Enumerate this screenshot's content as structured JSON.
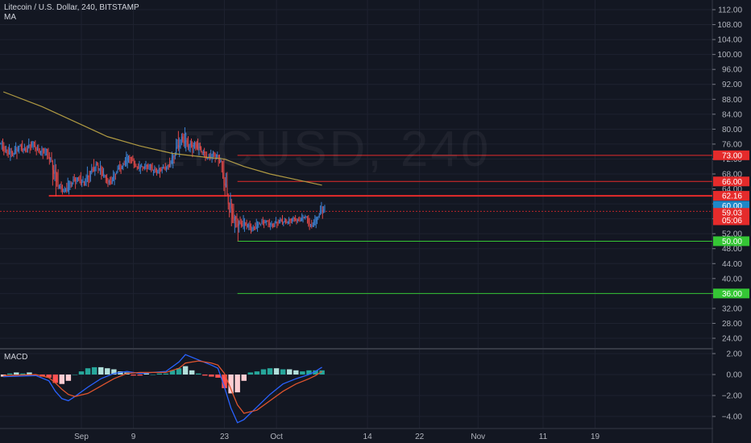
{
  "header": {
    "title": "Litecoin / U.S. Dollar, 240, BITSTAMP",
    "ma_label": "MA",
    "macd_label": "MACD",
    "watermark": "LTCUSD, 240"
  },
  "colors": {
    "background": "#131722",
    "grid": "#1e2230",
    "up_candle": "#3d83d4",
    "down_candle": "#e04848",
    "ma": "#b09a42",
    "macd_line": "#2962ff",
    "signal_line": "#e0542e",
    "hist_pos": "#26a69a",
    "hist_pos_light": "#b2dfdb",
    "hist_neg": "#ff5252",
    "hist_neg_light": "#ffcdd2",
    "level_red": "#e52b2b",
    "level_green": "#35c635",
    "price_tag": "#1e88c8"
  },
  "chart_data": [
    {
      "type": "candlestick",
      "title": "Litecoin / U.S. Dollar, 240, BITSTAMP",
      "overlay": "MA",
      "ylim": [
        20,
        114
      ],
      "y_ticks": [
        24,
        28,
        32,
        36,
        40,
        44,
        48,
        52,
        56,
        60,
        64,
        68,
        72,
        76,
        80,
        84,
        88,
        92,
        96,
        100,
        104,
        108,
        112
      ],
      "x_tick_labels": [
        "Sep",
        "9",
        "23",
        "Oct",
        "14",
        "22",
        "Nov",
        "11",
        "19"
      ],
      "x_tick_days": [
        1,
        9,
        23,
        31,
        45,
        53,
        62,
        72,
        80
      ],
      "x_axis_days_visible": [
        -11,
        91
      ],
      "ohlc_daily": [
        {
          "day": -11,
          "o": 76.0,
          "h": 77.5,
          "l": 73.0,
          "c": 74.5
        },
        {
          "day": -10,
          "o": 74.5,
          "h": 76.0,
          "l": 71.5,
          "c": 73.0
        },
        {
          "day": -9,
          "o": 73.0,
          "h": 76.5,
          "l": 72.0,
          "c": 75.5
        },
        {
          "day": -8,
          "o": 75.5,
          "h": 77.0,
          "l": 73.5,
          "c": 74.0
        },
        {
          "day": -7,
          "o": 74.0,
          "h": 77.5,
          "l": 73.5,
          "c": 76.5
        },
        {
          "day": -6,
          "o": 76.5,
          "h": 77.0,
          "l": 73.0,
          "c": 74.0
        },
        {
          "day": -5,
          "o": 74.0,
          "h": 75.5,
          "l": 72.0,
          "c": 74.5
        },
        {
          "day": -4,
          "o": 74.5,
          "h": 75.0,
          "l": 70.5,
          "c": 71.5
        },
        {
          "day": -3,
          "o": 71.5,
          "h": 72.0,
          "l": 62.0,
          "c": 64.5
        },
        {
          "day": -2,
          "o": 64.5,
          "h": 66.0,
          "l": 62.5,
          "c": 63.5
        },
        {
          "day": -1,
          "o": 63.5,
          "h": 67.0,
          "l": 62.5,
          "c": 65.5
        },
        {
          "day": 0,
          "o": 65.5,
          "h": 68.0,
          "l": 64.0,
          "c": 67.0
        },
        {
          "day": 1,
          "o": 67.0,
          "h": 68.5,
          "l": 64.5,
          "c": 65.0
        },
        {
          "day": 2,
          "o": 65.0,
          "h": 70.0,
          "l": 64.5,
          "c": 68.5
        },
        {
          "day": 3,
          "o": 68.5,
          "h": 72.0,
          "l": 67.5,
          "c": 70.5
        },
        {
          "day": 4,
          "o": 70.5,
          "h": 71.5,
          "l": 66.5,
          "c": 67.5
        },
        {
          "day": 5,
          "o": 67.5,
          "h": 68.0,
          "l": 64.5,
          "c": 65.5
        },
        {
          "day": 6,
          "o": 65.5,
          "h": 69.0,
          "l": 65.0,
          "c": 68.5
        },
        {
          "day": 7,
          "o": 68.5,
          "h": 71.5,
          "l": 68.0,
          "c": 70.5
        },
        {
          "day": 8,
          "o": 70.5,
          "h": 74.0,
          "l": 69.5,
          "c": 72.5
        },
        {
          "day": 9,
          "o": 72.5,
          "h": 73.0,
          "l": 69.5,
          "c": 70.0
        },
        {
          "day": 10,
          "o": 70.0,
          "h": 71.5,
          "l": 68.0,
          "c": 69.5
        },
        {
          "day": 11,
          "o": 69.5,
          "h": 71.5,
          "l": 68.5,
          "c": 70.5
        },
        {
          "day": 12,
          "o": 70.5,
          "h": 71.0,
          "l": 67.5,
          "c": 68.5
        },
        {
          "day": 13,
          "o": 68.5,
          "h": 70.5,
          "l": 67.0,
          "c": 69.5
        },
        {
          "day": 14,
          "o": 69.5,
          "h": 71.0,
          "l": 68.5,
          "c": 70.0
        },
        {
          "day": 15,
          "o": 70.0,
          "h": 74.0,
          "l": 69.5,
          "c": 73.5
        },
        {
          "day": 16,
          "o": 73.5,
          "h": 79.5,
          "l": 72.5,
          "c": 78.0
        },
        {
          "day": 17,
          "o": 78.0,
          "h": 80.5,
          "l": 74.0,
          "c": 75.0
        },
        {
          "day": 18,
          "o": 75.0,
          "h": 77.5,
          "l": 72.5,
          "c": 76.5
        },
        {
          "day": 19,
          "o": 76.5,
          "h": 77.5,
          "l": 73.0,
          "c": 74.0
        },
        {
          "day": 20,
          "o": 74.0,
          "h": 75.0,
          "l": 71.5,
          "c": 72.5
        },
        {
          "day": 21,
          "o": 72.5,
          "h": 74.5,
          "l": 71.0,
          "c": 73.5
        },
        {
          "day": 22,
          "o": 73.5,
          "h": 74.0,
          "l": 70.0,
          "c": 71.5
        },
        {
          "day": 23,
          "o": 71.5,
          "h": 72.0,
          "l": 62.0,
          "c": 62.5
        },
        {
          "day": 24,
          "o": 62.5,
          "h": 63.0,
          "l": 54.0,
          "c": 55.5
        },
        {
          "day": 25,
          "o": 55.5,
          "h": 57.5,
          "l": 50.0,
          "c": 55.0
        },
        {
          "day": 26,
          "o": 55.0,
          "h": 57.0,
          "l": 52.5,
          "c": 54.0
        },
        {
          "day": 27,
          "o": 54.0,
          "h": 55.5,
          "l": 52.0,
          "c": 53.5
        },
        {
          "day": 28,
          "o": 53.5,
          "h": 56.0,
          "l": 52.5,
          "c": 54.5
        },
        {
          "day": 29,
          "o": 54.5,
          "h": 56.5,
          "l": 53.5,
          "c": 55.5
        },
        {
          "day": 30,
          "o": 55.5,
          "h": 56.0,
          "l": 53.0,
          "c": 54.0
        },
        {
          "day": 31,
          "o": 54.0,
          "h": 56.5,
          "l": 53.5,
          "c": 55.5
        },
        {
          "day": 32,
          "o": 55.5,
          "h": 57.0,
          "l": 54.0,
          "c": 55.0
        },
        {
          "day": 33,
          "o": 55.0,
          "h": 56.5,
          "l": 54.0,
          "c": 56.0
        },
        {
          "day": 34,
          "o": 56.0,
          "h": 57.0,
          "l": 54.5,
          "c": 55.5
        },
        {
          "day": 35,
          "o": 55.5,
          "h": 57.5,
          "l": 55.0,
          "c": 56.5
        },
        {
          "day": 36,
          "o": 56.5,
          "h": 57.0,
          "l": 53.0,
          "c": 54.0
        },
        {
          "day": 37,
          "o": 54.0,
          "h": 57.0,
          "l": 53.5,
          "c": 56.5
        },
        {
          "day": 38,
          "o": 56.5,
          "h": 60.5,
          "l": 56.0,
          "c": 59.5
        }
      ],
      "ma": [
        {
          "day": -11,
          "value": 90.0
        },
        {
          "day": -5,
          "value": 86.0
        },
        {
          "day": 0,
          "value": 82.0
        },
        {
          "day": 5,
          "value": 78.0
        },
        {
          "day": 10,
          "value": 75.5
        },
        {
          "day": 15,
          "value": 73.5
        },
        {
          "day": 20,
          "value": 72.5
        },
        {
          "day": 23,
          "value": 72.0
        },
        {
          "day": 26,
          "value": 70.0
        },
        {
          "day": 30,
          "value": 68.0
        },
        {
          "day": 34,
          "value": 66.5
        },
        {
          "day": 38,
          "value": 65.0
        }
      ],
      "horizontal_levels": [
        {
          "price": 73.0,
          "label": "73.00",
          "color": "#e52b2b",
          "from_day": 25
        },
        {
          "price": 66.0,
          "label": "66.00",
          "color": "#e52b2b",
          "from_day": 25
        },
        {
          "price": 62.16,
          "label": "62.16",
          "color": "#e52b2b",
          "from_day": -4
        },
        {
          "price": 50.0,
          "label": "50.00",
          "color": "#35c635",
          "from_day": 25
        },
        {
          "price": 36.0,
          "label": "36.00",
          "color": "#35c635",
          "from_day": 25
        }
      ],
      "price_tags": [
        {
          "price": 59.5,
          "label": "60.00",
          "color": "#1e88c8"
        },
        {
          "price": 57.6,
          "label": "59.03",
          "color": "#e52b2b"
        },
        {
          "price": 55.6,
          "label": "05:06",
          "color": "#e52b2b"
        }
      ],
      "last_price_line": 58.0
    },
    {
      "type": "macd",
      "title": "MACD",
      "ylim": [
        -5.0,
        2.2
      ],
      "y_ticks": [
        2.0,
        0.0,
        -2.0,
        -4.0
      ],
      "y_tick_labels": [
        "2.00",
        "0.00",
        "−2.00",
        "−4.00"
      ],
      "series": [
        {
          "name": "MACD",
          "points": [
            [
              -11,
              -0.2
            ],
            [
              -6,
              -0.1
            ],
            [
              -4,
              -0.6
            ],
            [
              -3,
              -1.6
            ],
            [
              -2,
              -2.3
            ],
            [
              -1,
              -2.5
            ],
            [
              0,
              -2.1
            ],
            [
              2,
              -1.2
            ],
            [
              4,
              -0.4
            ],
            [
              6,
              0.1
            ],
            [
              8,
              0.3
            ],
            [
              10,
              0.1
            ],
            [
              12,
              0.2
            ],
            [
              14,
              0.3
            ],
            [
              16,
              1.2
            ],
            [
              17,
              1.9
            ],
            [
              19,
              1.4
            ],
            [
              21,
              0.9
            ],
            [
              22,
              0.6
            ],
            [
              23,
              -1.2
            ],
            [
              24,
              -3.2
            ],
            [
              25,
              -4.6
            ],
            [
              26,
              -4.3
            ],
            [
              28,
              -3.1
            ],
            [
              30,
              -1.9
            ],
            [
              32,
              -0.9
            ],
            [
              34,
              -0.4
            ],
            [
              36,
              0.0
            ],
            [
              37,
              0.3
            ],
            [
              38,
              0.7
            ]
          ]
        },
        {
          "name": "Signal",
          "points": [
            [
              -11,
              -0.1
            ],
            [
              -6,
              0.0
            ],
            [
              -4,
              -0.3
            ],
            [
              -3,
              -0.8
            ],
            [
              -2,
              -1.4
            ],
            [
              -1,
              -1.9
            ],
            [
              0,
              -2.1
            ],
            [
              2,
              -1.8
            ],
            [
              4,
              -1.1
            ],
            [
              6,
              -0.4
            ],
            [
              8,
              0.1
            ],
            [
              10,
              0.2
            ],
            [
              12,
              0.2
            ],
            [
              14,
              0.2
            ],
            [
              16,
              0.6
            ],
            [
              17,
              1.1
            ],
            [
              19,
              1.3
            ],
            [
              21,
              1.1
            ],
            [
              22,
              0.9
            ],
            [
              23,
              0.1
            ],
            [
              24,
              -1.4
            ],
            [
              25,
              -2.9
            ],
            [
              26,
              -3.7
            ],
            [
              28,
              -3.4
            ],
            [
              30,
              -2.5
            ],
            [
              32,
              -1.6
            ],
            [
              34,
              -0.9
            ],
            [
              36,
              -0.4
            ],
            [
              37,
              -0.1
            ],
            [
              38,
              0.3
            ]
          ]
        }
      ],
      "histogram": [
        {
          "day": -11,
          "v": -0.2
        },
        {
          "day": -10,
          "v": 0.1
        },
        {
          "day": -9,
          "v": 0.2
        },
        {
          "day": -8,
          "v": 0.1
        },
        {
          "day": -7,
          "v": 0.2
        },
        {
          "day": -6,
          "v": -0.1
        },
        {
          "day": -5,
          "v": -0.2
        },
        {
          "day": -4,
          "v": -0.3
        },
        {
          "day": -3,
          "v": -0.8
        },
        {
          "day": -2,
          "v": -0.9
        },
        {
          "day": -1,
          "v": -0.6
        },
        {
          "day": 0,
          "v": 0.0
        },
        {
          "day": 1,
          "v": 0.3
        },
        {
          "day": 2,
          "v": 0.6
        },
        {
          "day": 3,
          "v": 0.7
        },
        {
          "day": 4,
          "v": 0.7
        },
        {
          "day": 5,
          "v": 0.6
        },
        {
          "day": 6,
          "v": 0.5
        },
        {
          "day": 7,
          "v": 0.3
        },
        {
          "day": 8,
          "v": 0.2
        },
        {
          "day": 9,
          "v": -0.1
        },
        {
          "day": 10,
          "v": -0.1
        },
        {
          "day": 11,
          "v": 0.1
        },
        {
          "day": 12,
          "v": 0.0
        },
        {
          "day": 13,
          "v": 0.1
        },
        {
          "day": 14,
          "v": 0.1
        },
        {
          "day": 15,
          "v": 0.4
        },
        {
          "day": 16,
          "v": 0.6
        },
        {
          "day": 17,
          "v": 0.8
        },
        {
          "day": 18,
          "v": 0.4
        },
        {
          "day": 19,
          "v": 0.1
        },
        {
          "day": 20,
          "v": -0.1
        },
        {
          "day": 21,
          "v": -0.2
        },
        {
          "day": 22,
          "v": -0.3
        },
        {
          "day": 23,
          "v": -1.3
        },
        {
          "day": 24,
          "v": -1.8
        },
        {
          "day": 25,
          "v": -1.7
        },
        {
          "day": 26,
          "v": -0.6
        },
        {
          "day": 27,
          "v": 0.2
        },
        {
          "day": 28,
          "v": 0.3
        },
        {
          "day": 29,
          "v": 0.5
        },
        {
          "day": 30,
          "v": 0.6
        },
        {
          "day": 31,
          "v": 0.6
        },
        {
          "day": 32,
          "v": 0.5
        },
        {
          "day": 33,
          "v": 0.5
        },
        {
          "day": 34,
          "v": 0.4
        },
        {
          "day": 35,
          "v": 0.3
        },
        {
          "day": 36,
          "v": 0.4
        },
        {
          "day": 37,
          "v": 0.4
        },
        {
          "day": 38,
          "v": 0.4
        }
      ]
    }
  ]
}
